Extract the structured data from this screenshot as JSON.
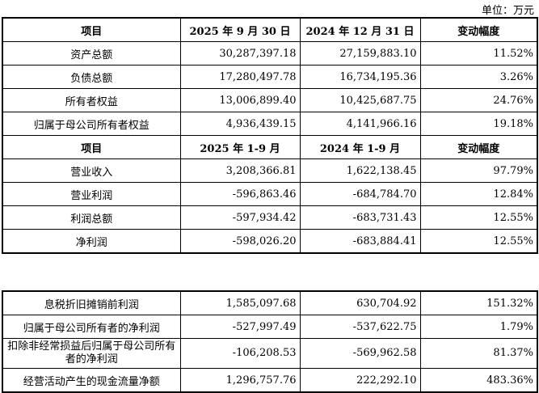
{
  "unit_label": "单位：万元",
  "balance": {
    "headers": [
      "项目",
      "2025 年 9 月 30 日",
      "2024 年 12 月 31 日",
      "变动幅度"
    ],
    "rows": [
      [
        "资产总额",
        "30,287,397.18",
        "27,159,883.10",
        "11.52%"
      ],
      [
        "负债总额",
        "17,280,497.78",
        "16,734,195.36",
        "3.26%"
      ],
      [
        "所有者权益",
        "13,006,899.40",
        "10,425,687.75",
        "24.76%"
      ],
      [
        "归属于母公司所有者权益",
        "4,936,439.15",
        "4,141,966.16",
        "19.18%"
      ]
    ]
  },
  "income": {
    "headers": [
      "项目",
      "2025 年 1-9 月",
      "2024 年 1-9 月",
      "变动幅度"
    ],
    "rows": [
      [
        "营业收入",
        "3,208,366.81",
        "1,622,138.45",
        "97.79%"
      ],
      [
        "营业利润",
        "-596,863.46",
        "-684,784.70",
        "12.84%"
      ],
      [
        "利润总额",
        "-597,934.42",
        "-683,731.43",
        "12.55%"
      ],
      [
        "净利润",
        "-598,026.20",
        "-683,884.41",
        "12.55%"
      ]
    ]
  },
  "other": {
    "rows": [
      [
        "息税折旧摊销前利润",
        "1,585,097.68",
        "630,704.92",
        "151.32%"
      ],
      [
        "归属于母公司所有者的净利润",
        "-527,997.49",
        "-537,622.75",
        "1.79%"
      ],
      [
        "扣除非经常损益后归属于母公司所有者的净利润",
        "-106,208.53",
        "-569,962.58",
        "81.37%"
      ],
      [
        "经营活动产生的现金流量净额",
        "1,296,757.76",
        "222,292.10",
        "483.36%"
      ]
    ]
  }
}
